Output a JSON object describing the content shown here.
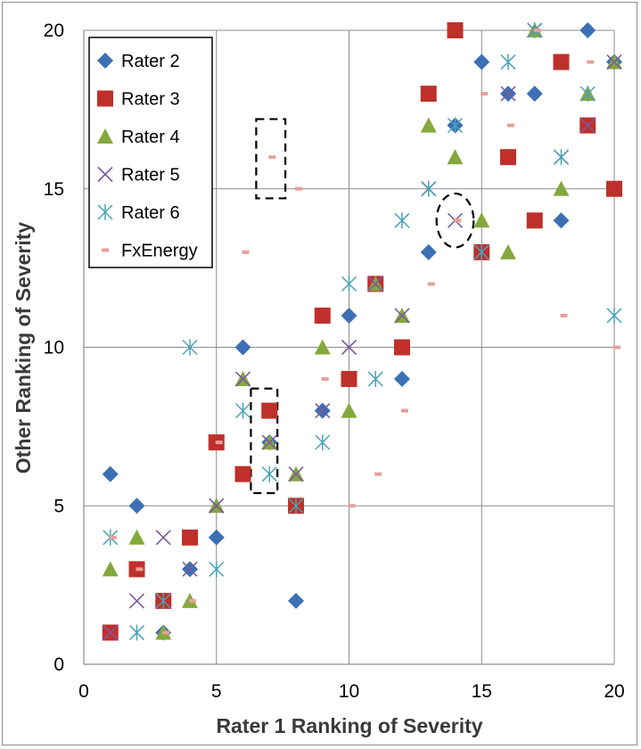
{
  "chart_data": {
    "type": "scatter",
    "xlabel": "Rater 1 Ranking of Severity",
    "ylabel": "Other Ranking of Severity",
    "xlim": [
      0,
      20
    ],
    "ylim": [
      0,
      20
    ],
    "xticks": [
      "0",
      "5",
      "10",
      "15",
      "20"
    ],
    "yticks": [
      "0",
      "5",
      "10",
      "15",
      "20"
    ],
    "grid": true,
    "legend_position": "top-left",
    "series": [
      {
        "name": "Rater 2",
        "marker": "diamond",
        "color": "#3c6fb4",
        "points": [
          [
            1,
            6
          ],
          [
            2,
            5
          ],
          [
            3,
            1
          ],
          [
            4,
            3
          ],
          [
            5,
            4
          ],
          [
            6,
            10
          ],
          [
            7,
            7
          ],
          [
            8,
            2
          ],
          [
            9,
            8
          ],
          [
            10,
            11
          ],
          [
            11,
            12
          ],
          [
            12,
            9
          ],
          [
            13,
            13
          ],
          [
            14,
            17
          ],
          [
            15,
            19
          ],
          [
            16,
            18
          ],
          [
            17,
            18
          ],
          [
            18,
            14
          ],
          [
            19,
            20
          ],
          [
            20,
            19
          ]
        ]
      },
      {
        "name": "Rater 3",
        "marker": "square",
        "color": "#c0302a",
        "points": [
          [
            1,
            1
          ],
          [
            2,
            3
          ],
          [
            3,
            2
          ],
          [
            4,
            4
          ],
          [
            5,
            7
          ],
          [
            6,
            6
          ],
          [
            7,
            8
          ],
          [
            8,
            5
          ],
          [
            9,
            11
          ],
          [
            10,
            9
          ],
          [
            11,
            12
          ],
          [
            12,
            10
          ],
          [
            13,
            18
          ],
          [
            14,
            20
          ],
          [
            15,
            13
          ],
          [
            16,
            16
          ],
          [
            17,
            14
          ],
          [
            18,
            19
          ],
          [
            19,
            17
          ],
          [
            20,
            15
          ]
        ]
      },
      {
        "name": "Rater 4",
        "marker": "triangle",
        "color": "#85a83c",
        "points": [
          [
            1,
            3
          ],
          [
            2,
            4
          ],
          [
            3,
            1
          ],
          [
            4,
            2
          ],
          [
            5,
            5
          ],
          [
            6,
            9
          ],
          [
            7,
            7
          ],
          [
            8,
            6
          ],
          [
            9,
            10
          ],
          [
            10,
            8
          ],
          [
            11,
            12
          ],
          [
            12,
            11
          ],
          [
            13,
            17
          ],
          [
            14,
            16
          ],
          [
            15,
            14
          ],
          [
            16,
            13
          ],
          [
            17,
            20
          ],
          [
            18,
            15
          ],
          [
            19,
            18
          ],
          [
            20,
            19
          ]
        ]
      },
      {
        "name": "Rater 5",
        "marker": "x",
        "color": "#7a5a9e",
        "points": [
          [
            1,
            1
          ],
          [
            2,
            2
          ],
          [
            3,
            4
          ],
          [
            4,
            3
          ],
          [
            5,
            5
          ],
          [
            6,
            9
          ],
          [
            7,
            7
          ],
          [
            8,
            6
          ],
          [
            9,
            8
          ],
          [
            10,
            10
          ],
          [
            11,
            12
          ],
          [
            12,
            11
          ],
          [
            13,
            15
          ],
          [
            14,
            14
          ],
          [
            15,
            13
          ],
          [
            16,
            18
          ],
          [
            17,
            20
          ],
          [
            18,
            16
          ],
          [
            19,
            17
          ],
          [
            20,
            19
          ]
        ]
      },
      {
        "name": "Rater 6",
        "marker": "asterisk",
        "color": "#4aa3b8",
        "points": [
          [
            1,
            4
          ],
          [
            2,
            1
          ],
          [
            3,
            2
          ],
          [
            4,
            10
          ],
          [
            5,
            3
          ],
          [
            6,
            8
          ],
          [
            7,
            6
          ],
          [
            8,
            5
          ],
          [
            9,
            7
          ],
          [
            10,
            12
          ],
          [
            11,
            9
          ],
          [
            12,
            14
          ],
          [
            13,
            15
          ],
          [
            14,
            17
          ],
          [
            15,
            13
          ],
          [
            16,
            19
          ],
          [
            17,
            20
          ],
          [
            18,
            16
          ],
          [
            19,
            18
          ],
          [
            20,
            11
          ]
        ]
      },
      {
        "name": "FxEnergy",
        "marker": "dash",
        "color": "#e6a09a",
        "points": [
          [
            1.1,
            4
          ],
          [
            2.1,
            3
          ],
          [
            3.1,
            1
          ],
          [
            4.1,
            2
          ],
          [
            5.1,
            7
          ],
          [
            6.1,
            13
          ],
          [
            7.1,
            16
          ],
          [
            8.1,
            15
          ],
          [
            9.1,
            9
          ],
          [
            10.1,
            5
          ],
          [
            11.1,
            6
          ],
          [
            12.1,
            8
          ],
          [
            13.1,
            12
          ],
          [
            14.1,
            14
          ],
          [
            15.1,
            18
          ],
          [
            16.1,
            17
          ],
          [
            17.1,
            20
          ],
          [
            18.1,
            11
          ],
          [
            19.1,
            19
          ],
          [
            20.1,
            10
          ]
        ]
      }
    ],
    "annotations": [
      {
        "shape": "dashed-rect",
        "x": [
          6.5,
          7.6
        ],
        "y": [
          14.7,
          17.2
        ]
      },
      {
        "shape": "dashed-rect",
        "x": [
          6.3,
          7.3
        ],
        "y": [
          5.4,
          8.7
        ]
      },
      {
        "shape": "dashed-circle",
        "center": [
          14,
          14
        ],
        "radius_x": 0.7,
        "radius_y": 0.85
      }
    ]
  }
}
